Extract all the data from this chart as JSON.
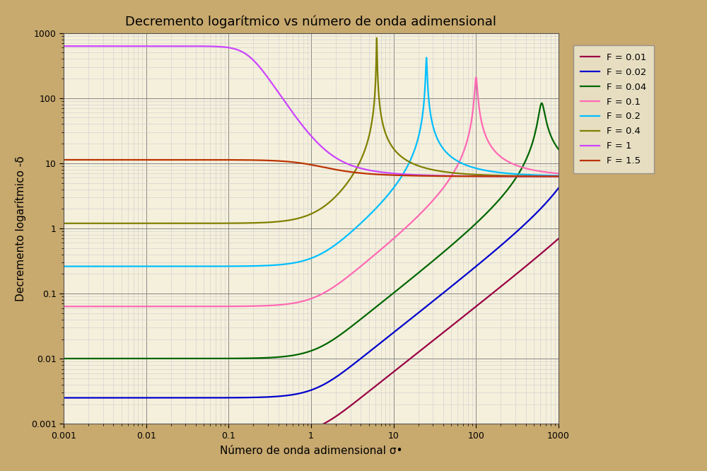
{
  "title": "Decremento logarítmico vs número de onda adimensional",
  "xlabel": "Número de onda adimensional σ•",
  "ylabel": "Decremento logarítmico -δ",
  "F_values": [
    0.01,
    0.02,
    0.04,
    0.1,
    0.2,
    0.4,
    1.0,
    1.5
  ],
  "colors": [
    "#990044",
    "#0000CC",
    "#006600",
    "#FF69B4",
    "#00BFFF",
    "#808000",
    "#CC44FF",
    "#BB3300"
  ],
  "legend_labels": [
    "F = 0.01",
    "F = 0.02",
    "F = 0.04",
    "F = 0.1",
    "F = 0.2",
    "F = 0.4",
    "F = 1",
    "F = 1.5"
  ],
  "background_outer": "#C8A96E",
  "background_inner": "#F5F0DC",
  "grid_color_major": "#888888",
  "grid_color_minor": "#CCCCCC",
  "title_fontsize": 13,
  "label_fontsize": 11,
  "linewidth": 1.6
}
